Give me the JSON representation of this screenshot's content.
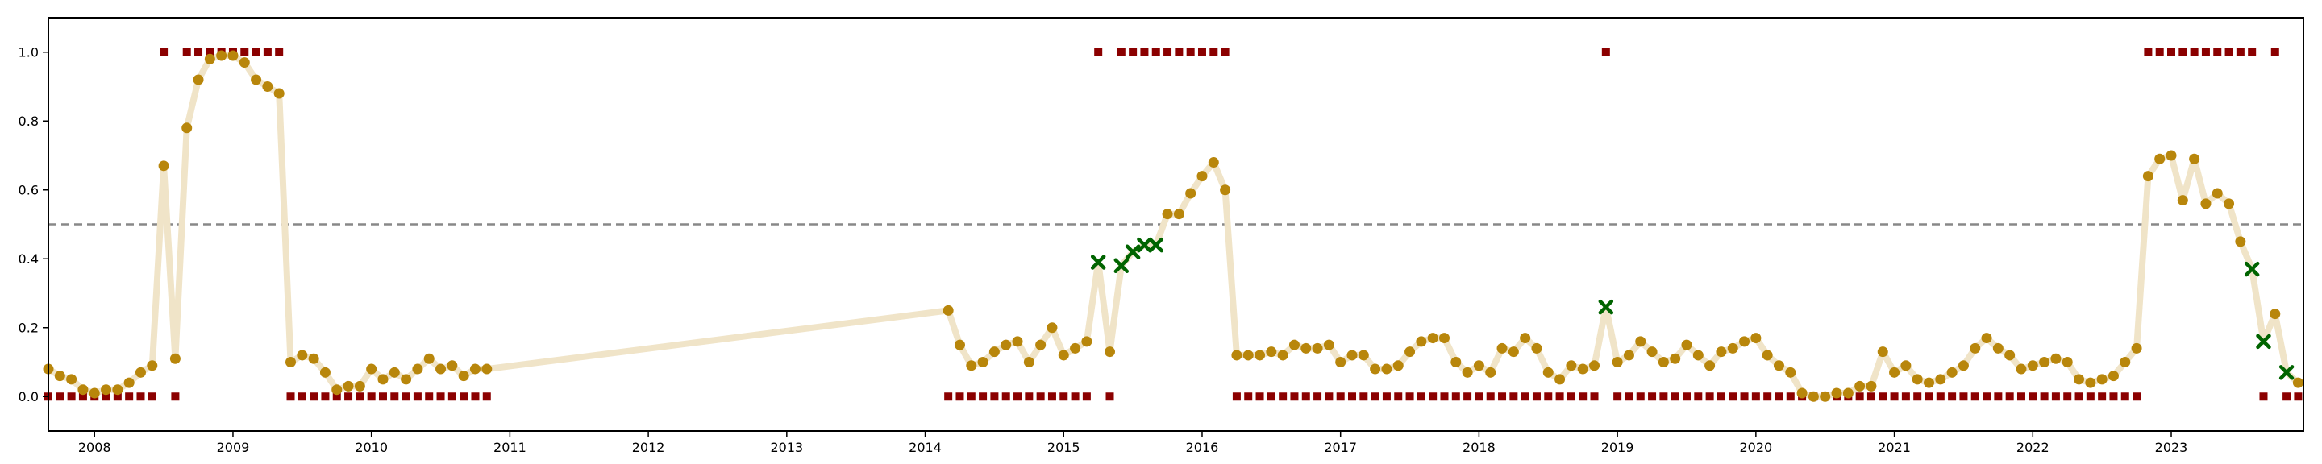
{
  "chart_data": {
    "type": "scatter",
    "title": "",
    "xlabel": "",
    "ylabel": "",
    "xlim": [
      "2007-09-01",
      "2023-12-15"
    ],
    "ylim": [
      -0.1,
      1.1
    ],
    "x_ticks": [
      "2008",
      "2009",
      "2010",
      "2011",
      "2012",
      "2013",
      "2014",
      "2015",
      "2016",
      "2017",
      "2018",
      "2019",
      "2020",
      "2021",
      "2022",
      "2023"
    ],
    "y_ticks": [
      "0.0",
      "0.2",
      "0.4",
      "0.6",
      "0.8",
      "1.0"
    ],
    "threshold": 0.5,
    "colors": {
      "line": "#f0e4c8",
      "point": "#b8860b",
      "label": "#8b0000",
      "flagged": "#006400",
      "threshold": "#888888"
    },
    "dates": [
      "2007-09",
      "2007-10",
      "2007-11",
      "2007-12",
      "2008-01",
      "2008-02",
      "2008-03",
      "2008-04",
      "2008-05",
      "2008-06",
      "2008-07",
      "2008-08",
      "2008-09",
      "2008-10",
      "2008-11",
      "2008-12",
      "2009-01",
      "2009-02",
      "2009-03",
      "2009-04",
      "2009-05",
      "2009-06",
      "2009-07",
      "2009-08",
      "2009-09",
      "2009-10",
      "2009-11",
      "2009-12",
      "2010-01",
      "2010-02",
      "2010-03",
      "2010-04",
      "2010-05",
      "2010-06",
      "2010-07",
      "2010-08",
      "2010-09",
      "2010-10",
      "2010-11",
      "2014-03",
      "2014-04",
      "2014-05",
      "2014-06",
      "2014-07",
      "2014-08",
      "2014-09",
      "2014-10",
      "2014-11",
      "2014-12",
      "2015-01",
      "2015-02",
      "2015-03",
      "2015-04",
      "2015-05",
      "2015-06",
      "2015-07",
      "2015-08",
      "2015-09",
      "2015-10",
      "2015-11",
      "2015-12",
      "2016-01",
      "2016-02",
      "2016-03",
      "2016-04",
      "2016-05",
      "2016-06",
      "2016-07",
      "2016-08",
      "2016-09",
      "2016-10",
      "2016-11",
      "2016-12",
      "2017-01",
      "2017-02",
      "2017-03",
      "2017-04",
      "2017-05",
      "2017-06",
      "2017-07",
      "2017-08",
      "2017-09",
      "2017-10",
      "2017-11",
      "2017-12",
      "2018-01",
      "2018-02",
      "2018-03",
      "2018-04",
      "2018-05",
      "2018-06",
      "2018-07",
      "2018-08",
      "2018-09",
      "2018-10",
      "2018-11",
      "2018-12",
      "2019-01",
      "2019-02",
      "2019-03",
      "2019-04",
      "2019-05",
      "2019-06",
      "2019-07",
      "2019-08",
      "2019-09",
      "2019-10",
      "2019-11",
      "2019-12",
      "2020-01",
      "2020-02",
      "2020-03",
      "2020-04",
      "2020-05",
      "2020-06",
      "2020-07",
      "2020-08",
      "2020-09",
      "2020-10",
      "2020-11",
      "2020-12",
      "2021-01",
      "2021-02",
      "2021-03",
      "2021-04",
      "2021-05",
      "2021-06",
      "2021-07",
      "2021-08",
      "2021-09",
      "2021-10",
      "2021-11",
      "2021-12",
      "2022-01",
      "2022-02",
      "2022-03",
      "2022-04",
      "2022-05",
      "2022-06",
      "2022-07",
      "2022-08",
      "2022-09",
      "2022-10",
      "2022-11",
      "2022-12",
      "2023-01",
      "2023-02",
      "2023-03",
      "2023-04",
      "2023-05",
      "2023-06",
      "2023-07",
      "2023-08",
      "2023-09",
      "2023-10",
      "2023-11",
      "2023-12"
    ],
    "scores": [
      0.08,
      0.06,
      0.05,
      0.02,
      0.01,
      0.02,
      0.02,
      0.04,
      0.07,
      0.09,
      0.67,
      0.11,
      0.78,
      0.92,
      0.98,
      0.99,
      0.99,
      0.97,
      0.92,
      0.9,
      0.88,
      0.1,
      0.12,
      0.11,
      0.07,
      0.02,
      0.03,
      0.03,
      0.08,
      0.05,
      0.07,
      0.05,
      0.08,
      0.11,
      0.08,
      0.09,
      0.06,
      0.08,
      0.08,
      0.25,
      0.15,
      0.09,
      0.1,
      0.13,
      0.15,
      0.16,
      0.1,
      0.15,
      0.2,
      0.12,
      0.14,
      0.16,
      0.39,
      0.13,
      0.38,
      0.42,
      0.44,
      0.44,
      0.53,
      0.53,
      0.59,
      0.64,
      0.68,
      0.6,
      0.12,
      0.12,
      0.12,
      0.13,
      0.12,
      0.15,
      0.14,
      0.14,
      0.15,
      0.1,
      0.12,
      0.12,
      0.08,
      0.08,
      0.09,
      0.13,
      0.16,
      0.17,
      0.17,
      0.1,
      0.07,
      0.09,
      0.07,
      0.14,
      0.13,
      0.17,
      0.14,
      0.07,
      0.05,
      0.09,
      0.08,
      0.09,
      0.26,
      0.1,
      0.12,
      0.16,
      0.13,
      0.1,
      0.11,
      0.15,
      0.12,
      0.09,
      0.13,
      0.14,
      0.16,
      0.17,
      0.12,
      0.09,
      0.07,
      0.01,
      0.0,
      0.0,
      0.01,
      0.01,
      0.03,
      0.03,
      0.13,
      0.07,
      0.09,
      0.05,
      0.04,
      0.05,
      0.07,
      0.09,
      0.14,
      0.17,
      0.14,
      0.12,
      0.08,
      0.09,
      0.1,
      0.11,
      0.1,
      0.05,
      0.04,
      0.05,
      0.06,
      0.1,
      0.14,
      0.64,
      0.69,
      0.7,
      0.57,
      0.69,
      0.56,
      0.59,
      0.56,
      0.45,
      0.37,
      0.16,
      0.24,
      0.07,
      0.04
    ],
    "labels": [
      0,
      0,
      0,
      0,
      0,
      0,
      0,
      0,
      0,
      0,
      1,
      0,
      1,
      1,
      1,
      1,
      1,
      1,
      1,
      1,
      1,
      0,
      0,
      0,
      0,
      0,
      0,
      0,
      0,
      0,
      0,
      0,
      0,
      0,
      0,
      0,
      0,
      0,
      0,
      0,
      0,
      0,
      0,
      0,
      0,
      0,
      0,
      0,
      0,
      0,
      0,
      0,
      1,
      0,
      1,
      1,
      1,
      1,
      1,
      1,
      1,
      1,
      1,
      1,
      0,
      0,
      0,
      0,
      0,
      0,
      0,
      0,
      0,
      0,
      0,
      0,
      0,
      0,
      0,
      0,
      0,
      0,
      0,
      0,
      0,
      0,
      0,
      0,
      0,
      0,
      0,
      0,
      0,
      0,
      0,
      0,
      1,
      0,
      0,
      0,
      0,
      0,
      0,
      0,
      0,
      0,
      0,
      0,
      0,
      0,
      0,
      0,
      0,
      0,
      0,
      0,
      0,
      0,
      0,
      0,
      0,
      0,
      0,
      0,
      0,
      0,
      0,
      0,
      0,
      0,
      0,
      0,
      0,
      0,
      0,
      0,
      0,
      0,
      0,
      0,
      0,
      0,
      0,
      1,
      1,
      1,
      1,
      1,
      1,
      1,
      1,
      1,
      1,
      0,
      1,
      0,
      0
    ],
    "flagged_dates": [
      "2015-04",
      "2015-06",
      "2015-07",
      "2015-08",
      "2015-09",
      "2018-12",
      "2023-08",
      "2023-09",
      "2023-11"
    ]
  }
}
